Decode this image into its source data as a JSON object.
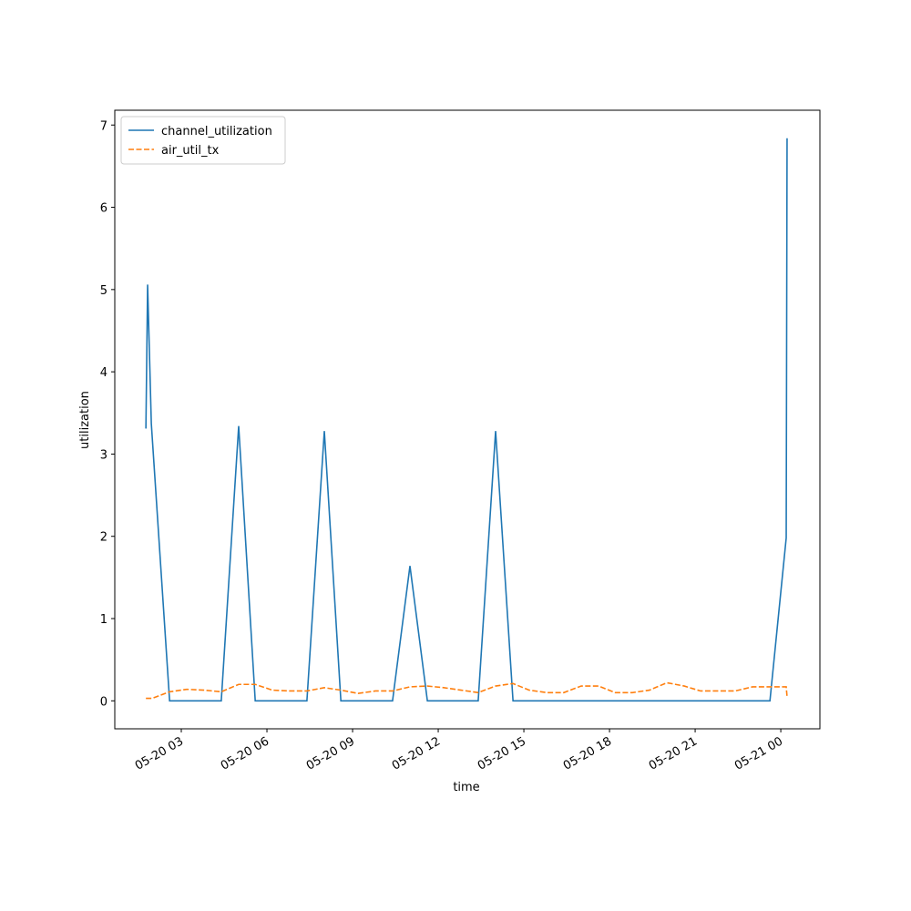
{
  "chart_data": {
    "type": "line",
    "x_label": "time",
    "y_label": "utilization",
    "xlim": [
      0.67,
      25.37
    ],
    "ylim": [
      -0.34,
      7.18
    ],
    "xticks": [
      {
        "value": 3,
        "label": "05-20 03"
      },
      {
        "value": 6,
        "label": "05-20 06"
      },
      {
        "value": 9,
        "label": "05-20 09"
      },
      {
        "value": 12,
        "label": "05-20 12"
      },
      {
        "value": 15,
        "label": "05-20 15"
      },
      {
        "value": 18,
        "label": "05-20 18"
      },
      {
        "value": 21,
        "label": "05-20 21"
      },
      {
        "value": 24,
        "label": "05-21 00"
      }
    ],
    "yticks": [
      0,
      1,
      2,
      3,
      4,
      5,
      6,
      7
    ],
    "legend": "upper left",
    "grid": false,
    "series": [
      {
        "name": "channel_utilization",
        "color": "#1f77b4",
        "dashed": false,
        "x": [
          1.76,
          1.82,
          1.95,
          2.59,
          4.4,
          5.01,
          5.59,
          7.4,
          8.01,
          8.59,
          10.4,
          11.01,
          11.62,
          13.4,
          14.01,
          14.62,
          23.62,
          24.19,
          24.22
        ],
        "values": [
          3.31,
          5.06,
          3.37,
          0,
          0,
          3.34,
          0,
          0,
          3.28,
          0,
          0,
          1.64,
          0,
          0,
          3.28,
          0,
          0,
          1.98,
          6.84
        ]
      },
      {
        "name": "air_util_tx",
        "color": "#ff7f0e",
        "dashed": true,
        "x": [
          1.76,
          1.98,
          2.59,
          3.19,
          3.8,
          4.4,
          5.01,
          5.59,
          6.19,
          6.8,
          7.4,
          8.01,
          8.59,
          9.19,
          9.8,
          10.4,
          11.01,
          11.62,
          12.19,
          12.8,
          13.4,
          14.01,
          14.62,
          15.19,
          15.8,
          16.4,
          17.01,
          17.62,
          18.19,
          18.8,
          19.4,
          20.01,
          20.62,
          21.19,
          21.8,
          22.4,
          23.01,
          23.62,
          24.19,
          24.22
        ],
        "values": [
          0.03,
          0.03,
          0.11,
          0.14,
          0.13,
          0.11,
          0.2,
          0.2,
          0.13,
          0.12,
          0.12,
          0.16,
          0.13,
          0.09,
          0.12,
          0.12,
          0.17,
          0.18,
          0.16,
          0.13,
          0.1,
          0.18,
          0.21,
          0.13,
          0.1,
          0.1,
          0.18,
          0.18,
          0.1,
          0.1,
          0.13,
          0.22,
          0.18,
          0.12,
          0.12,
          0.12,
          0.17,
          0.17,
          0.17,
          0.05
        ]
      }
    ]
  }
}
